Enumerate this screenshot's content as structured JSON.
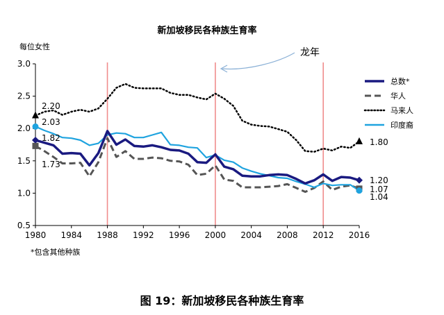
{
  "chart_data": {
    "type": "line",
    "title": "新加坡移民各种族生育率",
    "ylabel": "每位女性",
    "xlabel": "",
    "ylim": [
      0.5,
      3.0
    ],
    "xlim": [
      1980,
      2016
    ],
    "x_ticks": [
      1980,
      1984,
      1988,
      1992,
      1996,
      2000,
      2004,
      2008,
      2012,
      2016
    ],
    "x_tick_labels": [
      "1980",
      "1984",
      "1988",
      "1992",
      "1996",
      "2000",
      "2004",
      "2008",
      "2012",
      "2016"
    ],
    "y_ticks": [
      0.5,
      1.0,
      1.5,
      2.0,
      2.5,
      3.0
    ],
    "y_tick_labels": [
      "0.5",
      "1.0",
      "1.5",
      "2.0",
      "2.5",
      "3.0"
    ],
    "grid": false,
    "legend_position": "right",
    "x": [
      1980,
      1981,
      1982,
      1983,
      1984,
      1985,
      1986,
      1987,
      1988,
      1989,
      1990,
      1991,
      1992,
      1993,
      1994,
      1995,
      1996,
      1997,
      1998,
      1999,
      2000,
      2001,
      2002,
      2003,
      2004,
      2005,
      2006,
      2007,
      2008,
      2009,
      2010,
      2011,
      2012,
      2013,
      2014,
      2015,
      2016
    ],
    "series": [
      {
        "name": "总数*",
        "color": "#1a1a80",
        "dash": "solid",
        "values": [
          1.82,
          1.78,
          1.74,
          1.61,
          1.62,
          1.61,
          1.43,
          1.62,
          1.96,
          1.75,
          1.83,
          1.73,
          1.72,
          1.74,
          1.71,
          1.67,
          1.66,
          1.61,
          1.48,
          1.47,
          1.6,
          1.41,
          1.37,
          1.27,
          1.26,
          1.26,
          1.28,
          1.29,
          1.28,
          1.22,
          1.15,
          1.2,
          1.29,
          1.19,
          1.25,
          1.24,
          1.2
        ]
      },
      {
        "name": "华人",
        "color": "#555555",
        "dash": "dashed",
        "values": [
          1.73,
          1.65,
          1.56,
          1.46,
          1.46,
          1.47,
          1.26,
          1.48,
          1.85,
          1.56,
          1.65,
          1.53,
          1.53,
          1.55,
          1.54,
          1.5,
          1.49,
          1.44,
          1.28,
          1.3,
          1.43,
          1.21,
          1.19,
          1.09,
          1.09,
          1.09,
          1.1,
          1.11,
          1.14,
          1.08,
          1.02,
          1.08,
          1.18,
          1.05,
          1.1,
          1.12,
          1.07
        ]
      },
      {
        "name": "马来人",
        "color": "#000000",
        "dash": "dotted",
        "values": [
          2.2,
          2.26,
          2.28,
          2.21,
          2.26,
          2.29,
          2.26,
          2.31,
          2.46,
          2.63,
          2.69,
          2.63,
          2.62,
          2.62,
          2.62,
          2.55,
          2.52,
          2.52,
          2.48,
          2.45,
          2.54,
          2.46,
          2.35,
          2.12,
          2.06,
          2.04,
          2.03,
          1.99,
          1.95,
          1.82,
          1.65,
          1.64,
          1.69,
          1.66,
          1.72,
          1.7,
          1.8
        ]
      },
      {
        "name": "印度裔",
        "color": "#1fa3df",
        "dash": "solid",
        "values": [
          2.03,
          1.97,
          1.92,
          1.86,
          1.85,
          1.82,
          1.74,
          1.77,
          1.9,
          1.93,
          1.92,
          1.86,
          1.86,
          1.9,
          1.94,
          1.75,
          1.74,
          1.71,
          1.7,
          1.55,
          1.59,
          1.51,
          1.48,
          1.39,
          1.34,
          1.3,
          1.27,
          1.24,
          1.23,
          1.18,
          1.14,
          1.09,
          1.15,
          1.12,
          1.13,
          1.13,
          1.04
        ]
      }
    ],
    "vertical_markers": [
      1988,
      2000,
      2012
    ],
    "marker_color": "#f08c8c",
    "annotations": {
      "dragon_year": "龙年",
      "start_labels": {
        "malay": "2.20",
        "indian": "2.03",
        "total": "1.82",
        "chinese": "1.73"
      },
      "end_labels": {
        "malay": "1.80",
        "total": "1.20",
        "chinese": "1.07",
        "indian": "1.04"
      }
    },
    "footnote": "*包含其他种族"
  },
  "caption": "图 19：新加坡移民各种族生育率"
}
